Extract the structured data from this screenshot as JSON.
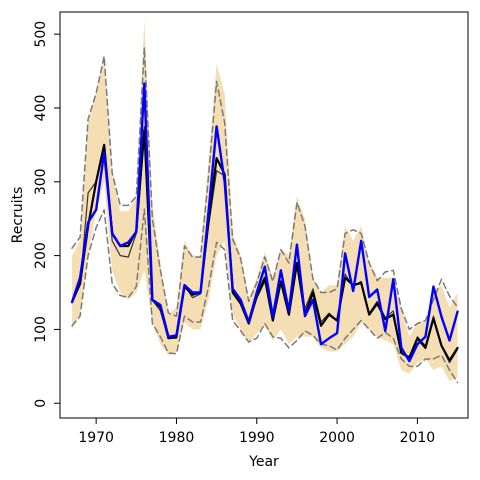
{
  "chart_data": {
    "type": "line",
    "title": "",
    "xlabel": "Year",
    "ylabel": "Recruits",
    "xlim": [
      1965.5,
      2016.3
    ],
    "ylim": [
      -20,
      530
    ],
    "x_ticks": [
      1970,
      1980,
      1990,
      2000,
      2010
    ],
    "y_ticks": [
      0,
      100,
      200,
      300,
      400,
      500
    ],
    "grid": false,
    "legend": "none",
    "colors": {
      "band": "#f5deb3",
      "black": "#000000",
      "thin": "#333333",
      "dashed": "#7a7a7a",
      "blue": "#0000ff"
    },
    "years": [
      1967,
      1968,
      1969,
      1970,
      1971,
      1972,
      1973,
      1974,
      1975,
      1976,
      1977,
      1978,
      1979,
      1980,
      1981,
      1982,
      1983,
      1984,
      1985,
      1986,
      1987,
      1988,
      1989,
      1990,
      1991,
      1992,
      1993,
      1994,
      1995,
      1996,
      1997,
      1998,
      1999,
      2000,
      2001,
      2002,
      2003,
      2004,
      2005,
      2006,
      2007,
      2008,
      2009,
      2010,
      2011,
      2012,
      2013,
      2014,
      2015
    ],
    "series": [
      {
        "kind": "band",
        "lower": [
          100,
          120,
          200,
          260,
          300,
          180,
          150,
          140,
          150,
          180,
          110,
          80,
          65,
          70,
          110,
          100,
          100,
          140,
          200,
          220,
          120,
          100,
          80,
          95,
          105,
          85,
          100,
          80,
          90,
          90,
          90,
          75,
          70,
          70,
          80,
          90,
          110,
          100,
          90,
          85,
          80,
          45,
          40,
          55,
          60,
          45,
          50,
          30,
          35
        ],
        "upper": [
          200,
          220,
          380,
          420,
          470,
          310,
          260,
          260,
          280,
          520,
          270,
          190,
          120,
          130,
          220,
          200,
          200,
          330,
          460,
          420,
          230,
          200,
          140,
          170,
          205,
          170,
          210,
          200,
          280,
          250,
          170,
          150,
          160,
          160,
          240,
          220,
          240,
          190,
          170,
          170,
          170,
          130,
          90,
          110,
          110,
          150,
          160,
          130,
          150
        ]
      },
      {
        "kind": "thin",
        "values": [
          140,
          160,
          285,
          300,
          350,
          220,
          200,
          198,
          230,
          375,
          140,
          125,
          88,
          88,
          160,
          143,
          148,
          240,
          315,
          308,
          150,
          135,
          110,
          142,
          165,
          118,
          178,
          128,
          185,
          128,
          155,
          110,
          122,
          112,
          175,
          158,
          165,
          122,
          138,
          116,
          125,
          68,
          60,
          90,
          78,
          118,
          77,
          55,
          73
        ]
      },
      {
        "kind": "black",
        "values": [
          137,
          162,
          240,
          300,
          350,
          230,
          213,
          213,
          233,
          370,
          140,
          130,
          88,
          90,
          158,
          147,
          150,
          248,
          332,
          310,
          150,
          135,
          108,
          145,
          170,
          112,
          165,
          120,
          190,
          120,
          150,
          105,
          120,
          112,
          170,
          160,
          163,
          120,
          135,
          114,
          120,
          68,
          62,
          88,
          75,
          115,
          78,
          58,
          75
        ]
      },
      {
        "kind": "dashed",
        "values": [
          105,
          118,
          200,
          238,
          262,
          162,
          146,
          143,
          158,
          263,
          108,
          90,
          68,
          67,
          118,
          110,
          110,
          158,
          218,
          208,
          112,
          98,
          83,
          88,
          108,
          90,
          88,
          75,
          85,
          98,
          92,
          80,
          78,
          72,
          88,
          100,
          112,
          100,
          88,
          96,
          88,
          60,
          50,
          50,
          60,
          60,
          65,
          45,
          28
        ]
      },
      {
        "kind": "dashed",
        "values": [
          210,
          225,
          385,
          420,
          470,
          312,
          268,
          268,
          280,
          482,
          250,
          180,
          122,
          118,
          213,
          198,
          198,
          308,
          436,
          380,
          222,
          196,
          138,
          163,
          198,
          165,
          208,
          190,
          272,
          240,
          168,
          150,
          150,
          155,
          230,
          235,
          230,
          190,
          166,
          178,
          180,
          128,
          100,
          108,
          112,
          140,
          168,
          145,
          130
        ]
      },
      {
        "kind": "blue",
        "values": [
          137,
          170,
          245,
          262,
          340,
          230,
          213,
          218,
          232,
          433,
          140,
          133,
          90,
          92,
          160,
          150,
          150,
          260,
          375,
          300,
          155,
          140,
          110,
          150,
          185,
          117,
          180,
          125,
          215,
          118,
          140,
          80,
          88,
          95,
          203,
          152,
          220,
          144,
          154,
          98,
          168,
          75,
          57,
          80,
          90,
          158,
          117,
          85,
          124
        ]
      }
    ]
  }
}
